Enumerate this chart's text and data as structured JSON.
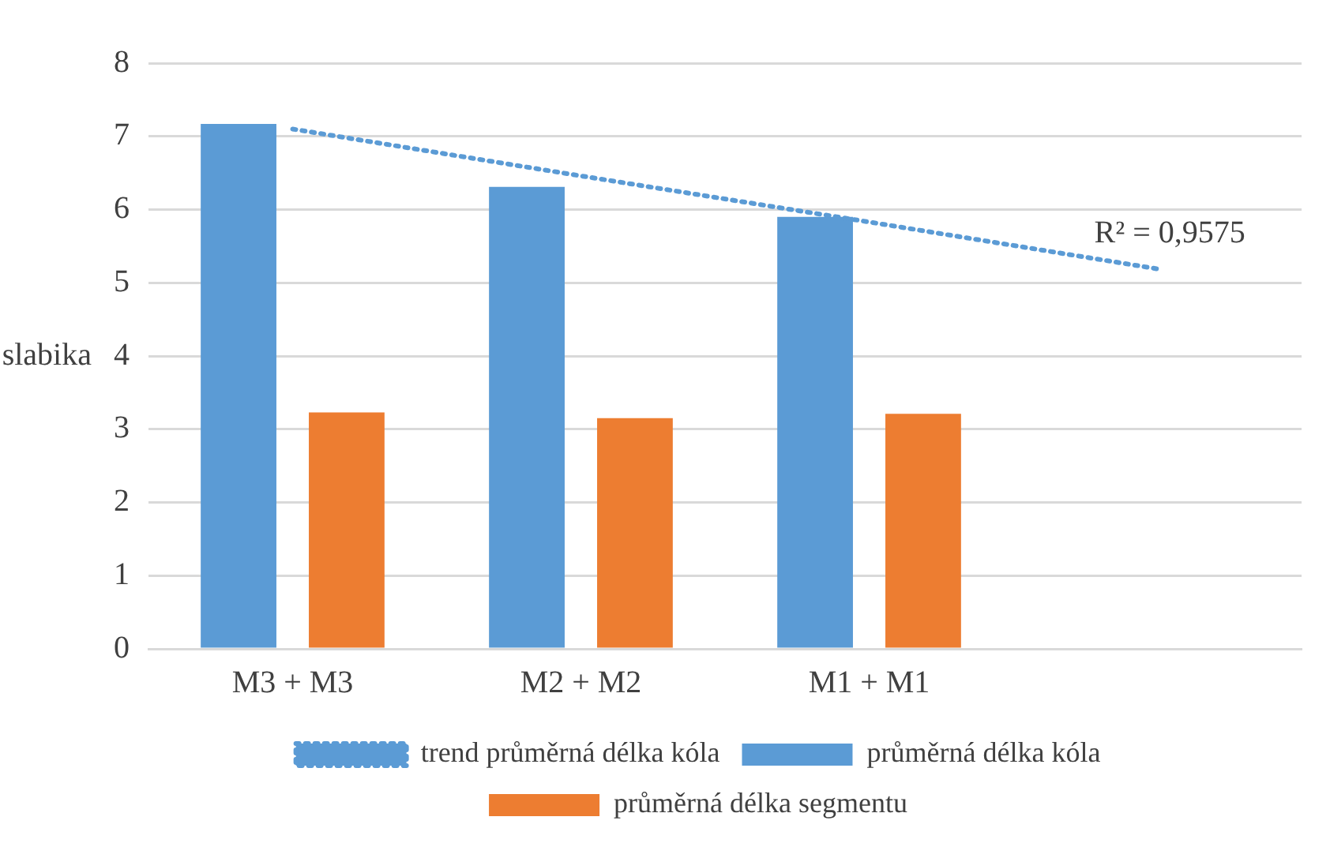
{
  "chart_data": {
    "type": "bar",
    "ylabel": "slabika",
    "categories": [
      "M3 + M3",
      "M2 + M2",
      "M1 + M1",
      null
    ],
    "series": [
      {
        "name": "průměrná délka kóla",
        "color": "#5b9bd5",
        "values": [
          7.17,
          6.31,
          5.9,
          null
        ]
      },
      {
        "name": "průměrná délka segmentu",
        "color": "#ed7d31",
        "values": [
          3.23,
          3.15,
          3.21,
          null
        ]
      },
      {
        "name": "trend průměrná délka kóla",
        "type": "line",
        "color": "#5b9bd5",
        "line_style": "dotted",
        "values": [
          7.1,
          6.46,
          5.83,
          5.19
        ]
      }
    ],
    "annotations": [
      "R² = 0,9575"
    ],
    "ylim": [
      0,
      8
    ],
    "yticks": [
      0,
      1,
      2,
      3,
      4,
      5,
      6,
      7,
      8
    ],
    "grid": "y",
    "legend": "bottom",
    "marker": "none"
  }
}
